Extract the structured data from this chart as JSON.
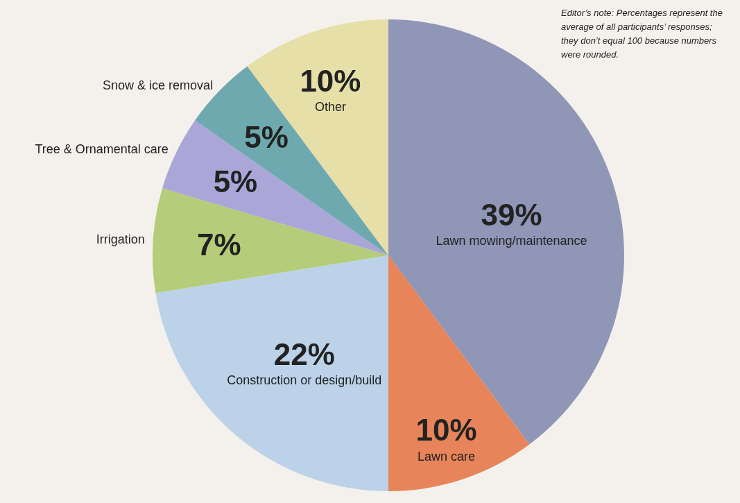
{
  "chart_data": {
    "type": "pie",
    "categories": [
      "Lawn mowing/maintenance",
      "Lawn care",
      "Construction or design/build",
      "Irrigation",
      "Tree & Ornamental care",
      "Snow & ice removal",
      "Other"
    ],
    "values": [
      39,
      10,
      22,
      7,
      5,
      5,
      10
    ],
    "colors": [
      "#8f96b6",
      "#e8845a",
      "#bcd2e8",
      "#b5cc7a",
      "#aaa7d8",
      "#6fa9b0",
      "#e6dfa8"
    ],
    "value_labels": [
      "39%",
      "10%",
      "22%",
      "7%",
      "5%",
      "5%",
      "10%"
    ],
    "legend": false,
    "annotations": [
      "Editor’s note: Percentages represent the average of all participants’ responses; they don’t equal 100 because numbers were rounded."
    ]
  }
}
